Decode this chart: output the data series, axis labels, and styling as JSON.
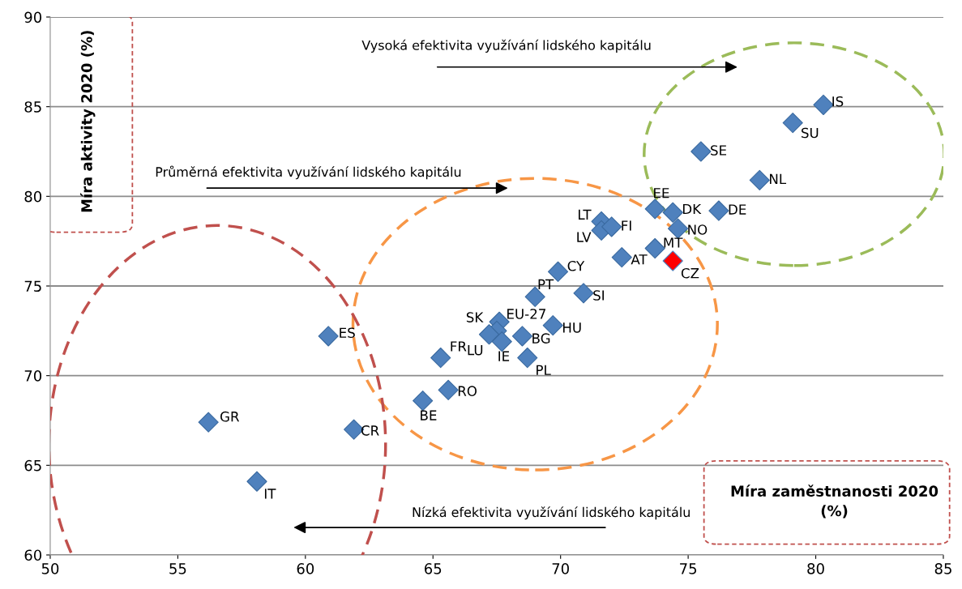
{
  "chart_data": {
    "type": "scatter",
    "xlabel": "Míra zaměstnanosti 2020 (%)",
    "ylabel": "Míra aktivity 2020 (%)",
    "annotations": [
      "Vysoká efektivita využívání lidského kapitálu",
      "Průměrná efektivita využívání lidského kapitálu",
      "Nízká efektivita využívání lidského kapitálu"
    ],
    "x": [
      80.3,
      79.1,
      75.5,
      77.8,
      73.7,
      74.4,
      74.6,
      76.2,
      71.6,
      71.6,
      72.0,
      73.7,
      72.4,
      74.4,
      69.9,
      69.0,
      70.9,
      69.7,
      67.6,
      67.5,
      67.2,
      67.7,
      68.5,
      68.7,
      65.3,
      65.6,
      64.6,
      60.9,
      56.2,
      61.9,
      58.1
    ],
    "values": [
      85.1,
      84.1,
      82.5,
      80.9,
      79.3,
      79.1,
      78.2,
      79.2,
      78.6,
      78.1,
      78.3,
      77.1,
      76.6,
      76.4,
      75.8,
      74.4,
      74.6,
      72.8,
      73.0,
      72.5,
      72.3,
      71.9,
      72.2,
      71.0,
      71.0,
      69.2,
      68.6,
      72.2,
      67.4,
      67.0,
      64.1
    ],
    "value_labels": [
      "IS",
      "SU",
      "SE",
      "NL",
      "EE",
      "DK",
      "NO",
      "DE",
      "LT",
      "LV",
      "FI",
      "MT",
      "AT",
      "CZ",
      "CY",
      "PT",
      "SI",
      "HU",
      "EU-27",
      "SK",
      "LU",
      "IE",
      "BG",
      "PL",
      "FR",
      "RO",
      "BE",
      "ES",
      "GR",
      "CR",
      "IT"
    ],
    "colors": [
      "#4f81bd",
      "#4f81bd",
      "#4f81bd",
      "#4f81bd",
      "#4f81bd",
      "#4f81bd",
      "#4f81bd",
      "#4f81bd",
      "#4f81bd",
      "#4f81bd",
      "#4f81bd",
      "#4f81bd",
      "#4f81bd",
      "#ff0000",
      "#4f81bd",
      "#4f81bd",
      "#4f81bd",
      "#4f81bd",
      "#4f81bd",
      "#4f81bd",
      "#4f81bd",
      "#4f81bd",
      "#4f81bd",
      "#4f81bd",
      "#4f81bd",
      "#4f81bd",
      "#4f81bd",
      "#4f81bd",
      "#4f81bd",
      "#4f81bd",
      "#4f81bd"
    ],
    "marker": "diamond",
    "xlim": [
      50,
      85
    ],
    "xticks": [
      50,
      55,
      60,
      65,
      70,
      75,
      80,
      85
    ],
    "ylim": [
      60,
      90
    ],
    "yticks": [
      60,
      65,
      70,
      75,
      80,
      85,
      90
    ],
    "grid": "y"
  }
}
